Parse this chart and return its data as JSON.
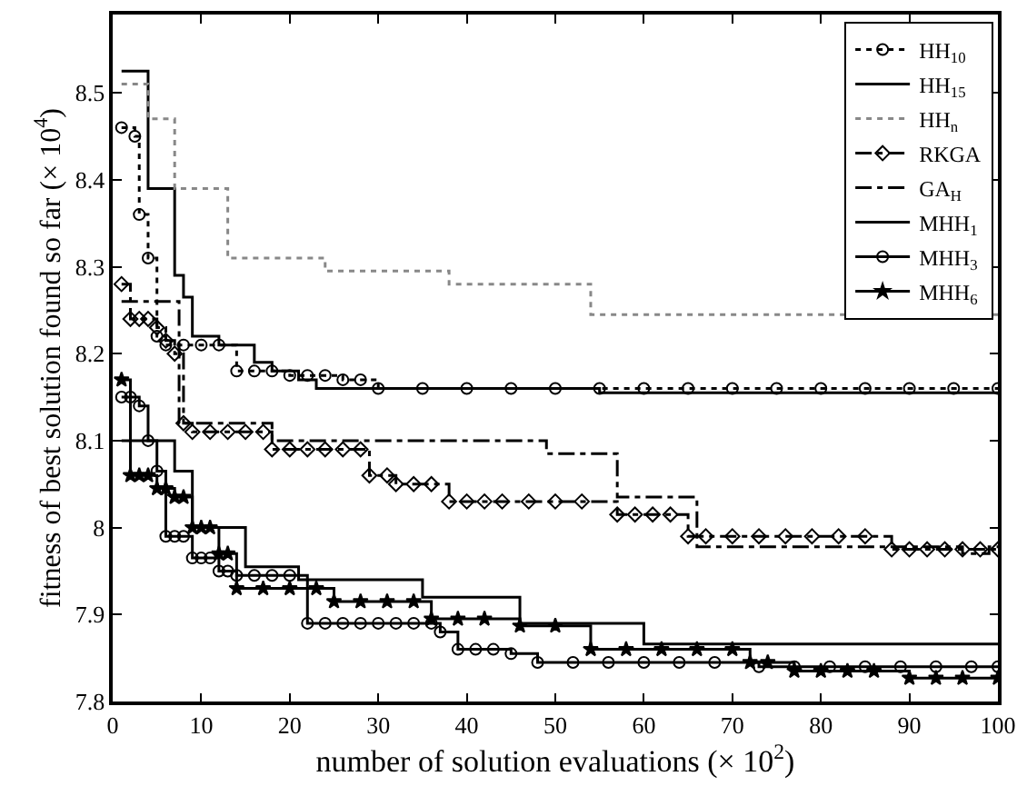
{
  "chart_data": {
    "type": "step",
    "xlabel": "number of solution evaluations (× 10$^{2}$)",
    "ylabel": "fitness of best solution found so far (× 10$^{4}$)",
    "xlim": [
      0,
      100
    ],
    "xticks": [
      0,
      10,
      20,
      30,
      40,
      50,
      60,
      70,
      80,
      90,
      100
    ],
    "ylim": [
      7.8,
      8.59
    ],
    "yticks": [
      7.8,
      7.9,
      8,
      8.1,
      8.2,
      8.3,
      8.4,
      8.5
    ],
    "legend": "top right",
    "series": [
      {
        "name": "HH$_{10}$",
        "color": "#000000",
        "line_style": "dotted",
        "marker": "circle",
        "x": [
          1,
          2.5,
          3,
          4,
          5,
          6,
          8,
          10,
          12,
          14,
          16,
          18,
          20,
          22,
          24,
          26,
          28,
          30,
          35,
          40,
          45,
          50,
          55,
          60,
          65,
          70,
          75,
          80,
          85,
          90,
          95,
          100
        ],
        "values": [
          8.46,
          8.45,
          8.36,
          8.31,
          8.22,
          8.21,
          8.21,
          8.21,
          8.21,
          8.18,
          8.18,
          8.18,
          8.175,
          8.175,
          8.175,
          8.17,
          8.17,
          8.16,
          8.16,
          8.16,
          8.16,
          8.16,
          8.16,
          8.16,
          8.16,
          8.16,
          8.16,
          8.16,
          8.16,
          8.16,
          8.16,
          8.16
        ]
      },
      {
        "name": "HH$_{15}$",
        "color": "#000000",
        "line_style": "solid",
        "marker": "none",
        "x": [
          1,
          4,
          7,
          8,
          9,
          12,
          16,
          18,
          21,
          23,
          26,
          55,
          100
        ],
        "values": [
          8.525,
          8.39,
          8.29,
          8.265,
          8.22,
          8.21,
          8.19,
          8.18,
          8.17,
          8.16,
          8.16,
          8.155,
          8.155
        ]
      },
      {
        "name": "HH$_{n}$",
        "color": "#888888",
        "line_style": "dotted",
        "marker": "none",
        "x": [
          1,
          4,
          7,
          12,
          13,
          24,
          38,
          54,
          100
        ],
        "values": [
          8.51,
          8.47,
          8.39,
          8.39,
          8.31,
          8.295,
          8.28,
          8.245,
          8.245
        ]
      },
      {
        "name": "RKGA",
        "color": "#000000",
        "line_style": "dashdot",
        "marker": "diamond",
        "x": [
          1,
          2,
          3,
          4,
          5,
          6,
          7,
          8,
          9,
          11,
          13,
          15,
          17,
          18,
          20,
          22,
          24,
          26,
          28,
          29,
          31,
          32,
          34,
          36,
          38,
          40,
          42,
          44,
          47,
          50,
          53,
          57,
          59,
          61,
          63,
          65,
          67,
          70,
          73,
          76,
          79,
          82,
          85,
          88,
          90,
          92,
          94,
          96,
          98,
          100
        ],
        "values": [
          8.28,
          8.24,
          8.24,
          8.24,
          8.23,
          8.215,
          8.2,
          8.12,
          8.11,
          8.11,
          8.11,
          8.11,
          8.11,
          8.09,
          8.09,
          8.09,
          8.09,
          8.09,
          8.09,
          8.06,
          8.06,
          8.05,
          8.05,
          8.05,
          8.03,
          8.03,
          8.03,
          8.03,
          8.03,
          8.03,
          8.03,
          8.015,
          8.015,
          8.015,
          8.015,
          7.99,
          7.99,
          7.99,
          7.99,
          7.99,
          7.99,
          7.99,
          7.99,
          7.975,
          7.975,
          7.975,
          7.975,
          7.975,
          7.975,
          7.975
        ]
      },
      {
        "name": "GA$_{H}$",
        "color": "#000000",
        "line_style": "dashdot",
        "marker": "none",
        "x": [
          1,
          7.5,
          18,
          49,
          57,
          66,
          96,
          99,
          100
        ],
        "values": [
          8.26,
          8.12,
          8.1,
          8.085,
          8.035,
          7.978,
          7.97,
          7.978,
          7.978
        ]
      },
      {
        "name": "MHH$_{1}$",
        "color": "#000000",
        "line_style": "solid",
        "marker": "none",
        "x": [
          1,
          7,
          9,
          15,
          21,
          35,
          46,
          60,
          100
        ],
        "values": [
          8.1,
          8.065,
          8.0,
          7.955,
          7.94,
          7.92,
          7.89,
          7.866,
          7.866
        ]
      },
      {
        "name": "MHH$_{3}$",
        "color": "#000000",
        "line_style": "solid",
        "marker": "circle",
        "x": [
          1,
          2,
          3,
          4,
          5,
          6,
          7,
          8,
          9,
          10,
          11,
          12,
          13,
          14,
          16,
          18,
          20,
          22,
          24,
          26,
          28,
          30,
          32,
          34,
          36,
          37,
          39,
          41,
          43,
          45,
          48,
          52,
          56,
          60,
          64,
          68,
          73,
          77,
          81,
          85,
          89,
          93,
          97,
          100
        ],
        "values": [
          8.15,
          8.15,
          8.14,
          8.1,
          8.065,
          7.99,
          7.99,
          7.99,
          7.965,
          7.965,
          7.965,
          7.95,
          7.95,
          7.945,
          7.945,
          7.945,
          7.945,
          7.89,
          7.89,
          7.89,
          7.89,
          7.89,
          7.89,
          7.89,
          7.89,
          7.88,
          7.86,
          7.86,
          7.86,
          7.855,
          7.845,
          7.845,
          7.845,
          7.845,
          7.845,
          7.845,
          7.84,
          7.84,
          7.84,
          7.84,
          7.84,
          7.84,
          7.84,
          7.84
        ]
      },
      {
        "name": "MHH$_{6}$",
        "color": "#000000",
        "line_style": "solid",
        "marker": "star",
        "x": [
          1,
          2,
          3,
          4,
          5,
          6,
          7,
          8,
          9,
          10,
          11,
          12,
          13,
          14,
          17,
          20,
          23,
          25,
          28,
          31,
          34,
          36,
          39,
          42,
          46,
          50,
          54,
          58,
          62,
          66,
          70,
          72,
          74,
          77,
          80,
          83,
          86,
          90,
          93,
          96,
          100
        ],
        "values": [
          8.17,
          8.06,
          8.06,
          8.06,
          8.045,
          8.045,
          8.035,
          8.035,
          8.0,
          8.0,
          8.0,
          7.97,
          7.97,
          7.93,
          7.93,
          7.93,
          7.93,
          7.915,
          7.915,
          7.915,
          7.915,
          7.895,
          7.895,
          7.895,
          7.887,
          7.887,
          7.86,
          7.86,
          7.86,
          7.86,
          7.86,
          7.845,
          7.845,
          7.835,
          7.835,
          7.835,
          7.835,
          7.827,
          7.827,
          7.827,
          7.827
        ]
      }
    ]
  }
}
